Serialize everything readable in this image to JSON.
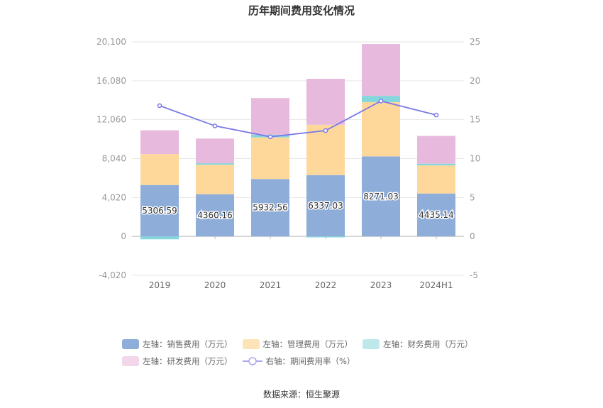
{
  "chart_data": {
    "type": "bar",
    "title": "历年期间费用变化情况",
    "categories": [
      "2019",
      "2020",
      "2021",
      "2022",
      "2023",
      "2024H1"
    ],
    "left_axis": {
      "ticks": [
        "20,100",
        "16,080",
        "12,060",
        "8,040",
        "4,020",
        "0",
        "-4,020"
      ],
      "ylim": [
        -4020,
        20100
      ]
    },
    "right_axis": {
      "ticks": [
        "25",
        "20",
        "15",
        "10",
        "5",
        "0",
        "-5"
      ],
      "ylim": [
        -5,
        25
      ]
    },
    "series": [
      {
        "name": "左轴：销售费用（万元）",
        "type": "bar",
        "color": "#8eadd9",
        "values": [
          5306.59,
          4360.16,
          5932.56,
          6337.03,
          8271.03,
          4435.14
        ],
        "labels": [
          "5306.59",
          "4360.16",
          "5932.56",
          "6337.03",
          "8271.03",
          "4435.14"
        ]
      },
      {
        "name": "左轴：管理费用（万元）",
        "type": "bar",
        "color": "#fed89b",
        "values": [
          3200,
          3050,
          4300,
          5200,
          5600,
          2900
        ]
      },
      {
        "name": "左轴：财务费用（万元）",
        "type": "bar",
        "color": "#86d6dd",
        "values": [
          -300,
          150,
          280,
          -100,
          650,
          180
        ]
      },
      {
        "name": "左轴：研发费用（万元）",
        "type": "bar",
        "color": "#e7b9dc",
        "values": [
          2450,
          2550,
          3780,
          4750,
          5350,
          2870
        ]
      },
      {
        "name": "右轴：期间费用率（%）",
        "type": "line",
        "axis": "right",
        "color": "#7a79e8",
        "values": [
          16.8,
          14.2,
          12.8,
          13.6,
          17.4,
          15.6
        ]
      }
    ],
    "legend_position": "bottom",
    "grid": true
  },
  "legend": {
    "items": [
      {
        "label": "左轴：销售费用（万元）",
        "color": "#8eadd9",
        "kind": "bar"
      },
      {
        "label": "左轴：管理费用（万元）",
        "color": "#fde4b8",
        "kind": "bar"
      },
      {
        "label": "左轴：财务费用（万元）",
        "color": "#bfe8eb",
        "kind": "bar"
      },
      {
        "label": "左轴：研发费用（万元）",
        "color": "#f2d6ea",
        "kind": "bar"
      },
      {
        "label": "右轴：期间费用率（%）",
        "color": "#a8a7f0",
        "kind": "line"
      }
    ]
  },
  "source": "数据来源：恒生聚源"
}
